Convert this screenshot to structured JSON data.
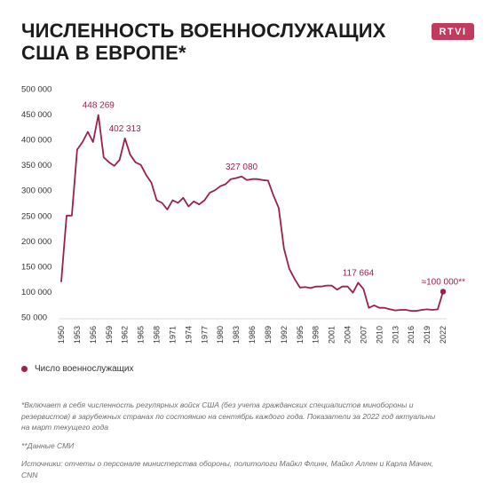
{
  "header": {
    "title_line1": "ЧИСЛЕННОСТЬ ВОЕННОСЛУЖАЩИХ",
    "title_line2": "США В ЕВРОПЕ*",
    "logo_text": "RTVI"
  },
  "colors": {
    "series": "#9b1f4f",
    "logo_bg": "#c23a5e",
    "axis_text": "#333333"
  },
  "chart_data": {
    "type": "line",
    "ylim": [
      50000,
      500000
    ],
    "y_ticks": [
      "50 000",
      "100 000",
      "150 000",
      "200 000",
      "250 000",
      "300 000",
      "350 000",
      "400 000",
      "450 000",
      "500 000"
    ],
    "x_ticks": [
      "1950",
      "1953",
      "1956",
      "1959",
      "1962",
      "1965",
      "1968",
      "1971",
      "1974",
      "1977",
      "1980",
      "1983",
      "1986",
      "1989",
      "1992",
      "1995",
      "1998",
      "2001",
      "2004",
      "2007",
      "2010",
      "2013",
      "2016",
      "2019",
      "2022"
    ],
    "xlim": [
      1950,
      2022
    ],
    "grid": false,
    "series": [
      {
        "name": "Число военнослужащих",
        "x": [
          1950,
          1951,
          1952,
          1953,
          1954,
          1955,
          1956,
          1957,
          1958,
          1959,
          1960,
          1961,
          1962,
          1963,
          1964,
          1965,
          1966,
          1967,
          1968,
          1969,
          1970,
          1971,
          1972,
          1973,
          1974,
          1975,
          1976,
          1977,
          1978,
          1979,
          1980,
          1981,
          1982,
          1983,
          1984,
          1985,
          1986,
          1987,
          1988,
          1989,
          1990,
          1991,
          1992,
          1993,
          1994,
          1995,
          1996,
          1997,
          1998,
          1999,
          2000,
          2001,
          2002,
          2003,
          2004,
          2005,
          2006,
          2007,
          2008,
          2009,
          2010,
          2011,
          2012,
          2013,
          2014,
          2015,
          2016,
          2017,
          2018,
          2019,
          2020,
          2021,
          2022
        ],
        "values": [
          120000,
          250000,
          250000,
          380000,
          395000,
          415000,
          395000,
          448269,
          365000,
          355000,
          348000,
          360000,
          402313,
          370000,
          355000,
          350000,
          330000,
          315000,
          280000,
          275000,
          262000,
          280000,
          275000,
          285000,
          268000,
          278000,
          272000,
          280000,
          295000,
          300000,
          308000,
          312000,
          322000,
          324000,
          327080,
          320000,
          322000,
          322000,
          320000,
          319000,
          290000,
          265000,
          185000,
          145000,
          125000,
          108000,
          109000,
          107000,
          110000,
          110000,
          112000,
          112000,
          104000,
          110000,
          110000,
          98000,
          117664,
          105000,
          68000,
          73000,
          68000,
          68000,
          65000,
          63000,
          64000,
          64000,
          62000,
          62000,
          64000,
          65000,
          64000,
          65000,
          100000
        ]
      }
    ],
    "annotations": [
      {
        "x": 1957,
        "y": 448269,
        "text": "448 269"
      },
      {
        "x": 1962,
        "y": 402313,
        "text": "402 313"
      },
      {
        "x": 1984,
        "y": 327080,
        "text": "327 080"
      },
      {
        "x": 2006,
        "y": 117664,
        "text": "117 664"
      },
      {
        "x": 2022,
        "y": 100000,
        "text": "≈100 000**"
      }
    ]
  },
  "legend": {
    "label": "Число военнослужащих"
  },
  "notes": {
    "footnote1": "*Включает в себя численность регулярных войск США (без учета гражданских специалистов минобороны и резервистов) в зарубежных странах по состоянию на сентябрь каждого года. Показатели за 2022 год актуальны на март текущего года",
    "footnote2": "**Данные СМИ",
    "sources": "Источники: отчеты о персонале министерства обороны, политологи Майкл Флинн, Майкл Аллен и Карла Мачен, CNN"
  }
}
